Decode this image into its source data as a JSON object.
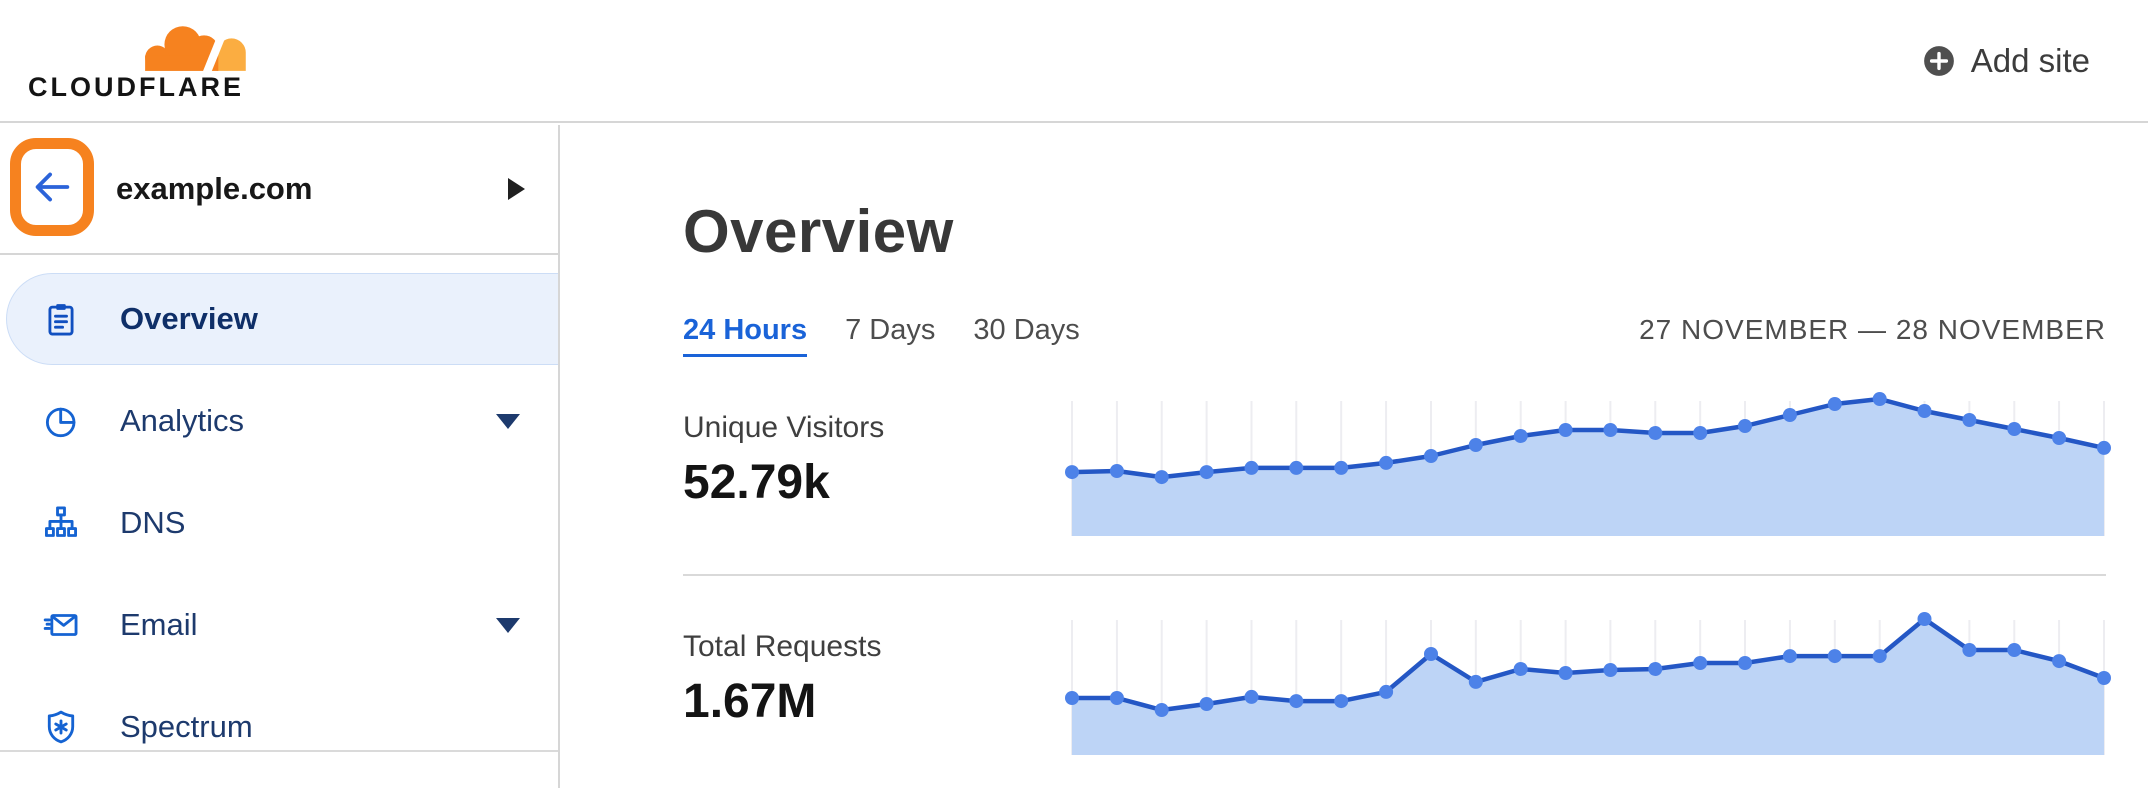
{
  "header": {
    "logo_text": "CLOUDFLARE",
    "add_site_label": "Add site"
  },
  "sidebar": {
    "site_name": "example.com",
    "items": [
      {
        "label": "Overview",
        "icon": "clipboard-icon",
        "selected": true,
        "expandable": false
      },
      {
        "label": "Analytics",
        "icon": "pie-chart-icon",
        "selected": false,
        "expandable": true
      },
      {
        "label": "DNS",
        "icon": "sitemap-icon",
        "selected": false,
        "expandable": false
      },
      {
        "label": "Email",
        "icon": "email-icon",
        "selected": false,
        "expandable": true
      },
      {
        "label": "Spectrum",
        "icon": "shield-icon",
        "selected": false,
        "expandable": false
      }
    ]
  },
  "main": {
    "title": "Overview",
    "tabs": [
      {
        "label": "24 Hours",
        "active": true
      },
      {
        "label": "7 Days",
        "active": false
      },
      {
        "label": "30 Days",
        "active": false
      }
    ],
    "date_range": "27 NOVEMBER — 28 NOVEMBER"
  },
  "chart_data": [
    {
      "type": "area",
      "title": "Unique Visitors",
      "total_label": "52.79k",
      "x_range": "24 hourly points, 27 Nov – 28 Nov, no tick labels shown",
      "value_axis_visible": false,
      "grid": "vertical-only",
      "points_relative_pct": [
        43.5,
        44.2,
        40.1,
        43.5,
        46.3,
        46.3,
        46.3,
        49.7,
        54.4,
        61.9,
        68.0,
        72.1,
        72.1,
        70.1,
        70.1,
        74.8,
        82.3,
        89.8,
        93.2,
        85.0,
        78.9,
        72.8,
        66.7,
        59.9
      ]
    },
    {
      "type": "area",
      "title": "Total Requests",
      "total_label": "1.67M",
      "x_range": "24 hourly points, 27 Nov – 28 Nov, no tick labels shown",
      "value_axis_visible": false,
      "grid": "vertical-only",
      "points_relative_pct": [
        38.8,
        38.8,
        30.6,
        34.7,
        39.5,
        36.7,
        36.7,
        42.9,
        68.7,
        49.7,
        58.5,
        55.8,
        57.8,
        58.5,
        62.6,
        62.6,
        67.3,
        67.3,
        67.3,
        92.5,
        71.4,
        71.4,
        63.9,
        52.4
      ]
    }
  ],
  "colors": {
    "brand_orange": "#f6821f",
    "brand_orange_light": "#fbad41",
    "accent_blue": "#1a63d8",
    "nav_icon_blue": "#1563d2",
    "nav_text_navy": "#1d3a6d",
    "selected_item_bg": "#eaf1fc",
    "chart_line": "#2457c5",
    "chart_dot": "#4d82e8",
    "chart_fill": "#bdd4f6",
    "chart_gridline": "#ededf1",
    "divider_gray": "#d6d6d6"
  }
}
